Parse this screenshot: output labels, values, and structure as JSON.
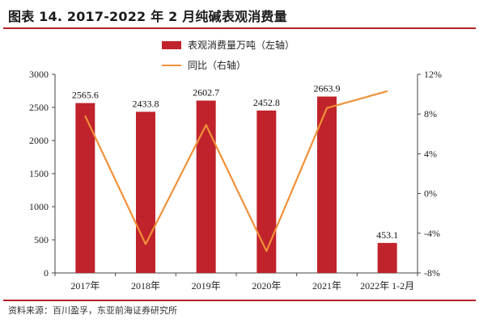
{
  "title": "图表 14. 2017-2022 年 2 月纯碱表观消费量",
  "source": "资料来源：百川盈孚，东亚前海证券研究所",
  "colors": {
    "bar": "#c0232b",
    "line": "#f0913a",
    "rule": "#b32025"
  },
  "chart_data": {
    "type": "bar",
    "categories": [
      "2017年",
      "2018年",
      "2019年",
      "2020年",
      "2021年",
      "2022年 1-2月"
    ],
    "series": [
      {
        "name": "表观消费量万吨（左轴）",
        "type": "bar",
        "axis": "left",
        "values": [
          2565.6,
          2433.8,
          2602.7,
          2452.8,
          2663.9,
          453.1
        ],
        "labels": [
          "2565.6",
          "2433.8",
          "2602.7",
          "2452.8",
          "2663.9",
          "453.1"
        ]
      },
      {
        "name": "同比（右轴）",
        "type": "line",
        "axis": "right",
        "values": [
          7.8,
          -5.1,
          6.9,
          -5.8,
          8.6,
          10.3
        ]
      }
    ],
    "y_left": {
      "min": 0,
      "max": 3000,
      "ticks": [
        "0",
        "500",
        "1000",
        "1500",
        "2000",
        "2500",
        "3000"
      ],
      "tick_values": [
        0,
        500,
        1000,
        1500,
        2000,
        2500,
        3000
      ]
    },
    "y_right": {
      "min": -8,
      "max": 12,
      "ticks": [
        "-8%",
        "-4%",
        "0%",
        "4%",
        "8%",
        "12%"
      ],
      "tick_values": [
        -8,
        -4,
        0,
        4,
        8,
        12
      ]
    },
    "grid": false,
    "legend": "top-center"
  }
}
